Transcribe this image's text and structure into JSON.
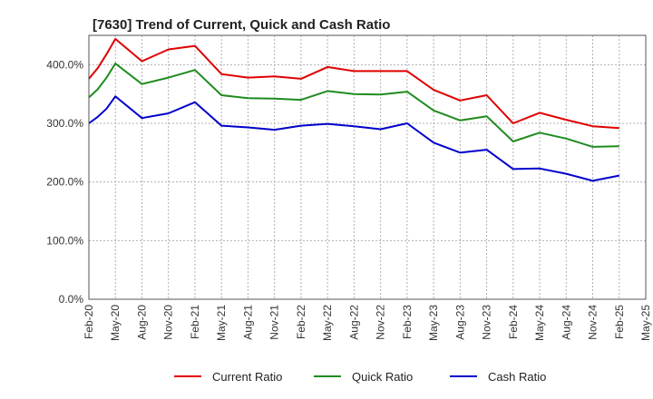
{
  "chart_data": {
    "type": "line",
    "title": "[7630]  Trend of Current, Quick and Cash Ratio",
    "xlabel": "",
    "ylabel": "",
    "ylim": [
      0,
      450
    ],
    "yticks": [
      0,
      100,
      200,
      300,
      400
    ],
    "ytick_labels": [
      "0.0%",
      "100.0%",
      "200.0%",
      "300.0%",
      "400.0%"
    ],
    "x_range": [
      0,
      63
    ],
    "xticks": [
      0,
      3,
      6,
      9,
      12,
      15,
      18,
      21,
      24,
      27,
      30,
      33,
      36,
      39,
      42,
      45,
      48,
      51,
      54,
      57,
      60,
      63
    ],
    "xtick_labels": [
      "Feb-20",
      "May-20",
      "Aug-20",
      "Nov-20",
      "Feb-21",
      "May-21",
      "Aug-21",
      "Nov-21",
      "Feb-22",
      "May-22",
      "Aug-22",
      "Nov-22",
      "Feb-23",
      "May-23",
      "Aug-23",
      "Nov-23",
      "Feb-24",
      "May-24",
      "Aug-24",
      "Nov-24",
      "Feb-25",
      "May-25"
    ],
    "grid": true,
    "legend_position": "bottom",
    "series": [
      {
        "name": "Current Ratio",
        "color": "#e00000",
        "x": [
          0,
          1,
          2,
          3,
          6,
          9,
          12,
          15,
          18,
          21,
          24,
          27,
          30,
          33,
          36,
          39,
          42,
          45,
          48,
          51,
          54,
          57,
          60
        ],
        "values": [
          376,
          394,
          418,
          444,
          406,
          426,
          432,
          384,
          378,
          380,
          376,
          396,
          389,
          389,
          389,
          357,
          339,
          348,
          300,
          318,
          306,
          295,
          292
        ]
      },
      {
        "name": "Quick Ratio",
        "color": "#1f8b1f",
        "x": [
          0,
          1,
          2,
          3,
          6,
          9,
          12,
          15,
          18,
          21,
          24,
          27,
          30,
          33,
          36,
          39,
          42,
          45,
          48,
          51,
          54,
          57,
          60
        ],
        "values": [
          344,
          358,
          378,
          402,
          367,
          378,
          391,
          348,
          343,
          342,
          340,
          355,
          350,
          349,
          354,
          322,
          305,
          312,
          269,
          284,
          274,
          260,
          261
        ]
      },
      {
        "name": "Cash Ratio",
        "color": "#0000cc",
        "x": [
          0,
          1,
          2,
          3,
          6,
          9,
          12,
          15,
          18,
          21,
          24,
          27,
          30,
          33,
          36,
          39,
          42,
          45,
          48,
          51,
          54,
          57,
          60
        ],
        "values": [
          300,
          311,
          325,
          346,
          309,
          317,
          336,
          296,
          293,
          289,
          296,
          299,
          295,
          290,
          300,
          267,
          250,
          255,
          222,
          223,
          214,
          202,
          211
        ]
      }
    ]
  }
}
